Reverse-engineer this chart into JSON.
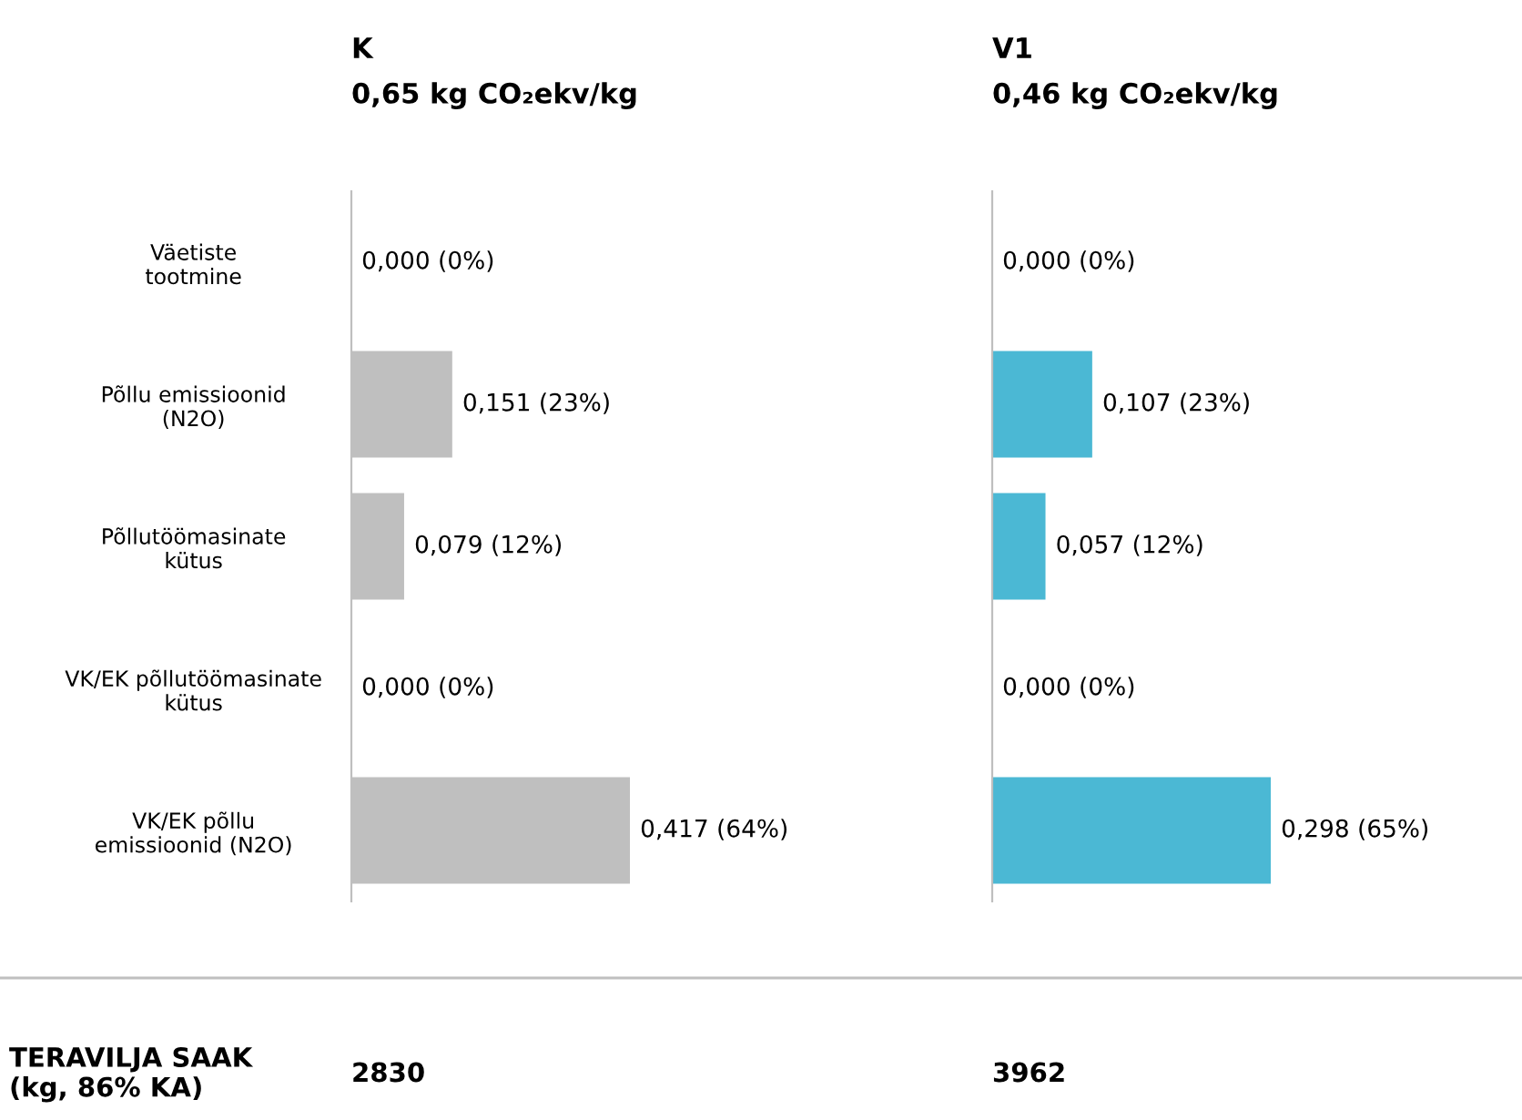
{
  "chart_data": [
    {
      "type": "bar",
      "orientation": "horizontal",
      "title": "K",
      "subtitle": "0,65 kg CO₂ekv/kg",
      "tick_labels": "y",
      "categories": [
        "Väetiste\ntootmine",
        "Põllu emissioonid\n(N2O)",
        "Põllutöömasinate\nkütus",
        "VK/EK põllutöömasinate\nkütus",
        "VK/EK põllu\nemissioonid (N2O)"
      ],
      "values": [
        0.0,
        0.151,
        0.079,
        0.0,
        0.417
      ],
      "value_labels": [
        "0,000 (0%)",
        "0,151 (23%)",
        "0,079 (12%)",
        "0,000 (0%)",
        "0,417 (64%)"
      ],
      "color": "#bfbfbf",
      "annotations": [
        "TERAVILJA SAAK\n(kg, 86% KA)",
        "2830"
      ]
    },
    {
      "type": "bar",
      "orientation": "horizontal",
      "title": "V1",
      "subtitle": "0,46 kg CO₂ekv/kg",
      "tick_labels": false,
      "categories": [
        null,
        null,
        null,
        null,
        null
      ],
      "values": [
        0.0,
        0.107,
        0.057,
        0.0,
        0.298
      ],
      "value_labels": [
        "0,000 (0%)",
        "0,107 (23%)",
        "0,057 (12%)",
        "0,000 (0%)",
        "0,298 (65%)"
      ],
      "color": "#4bb8d4",
      "annotations": [
        "3962"
      ]
    }
  ]
}
